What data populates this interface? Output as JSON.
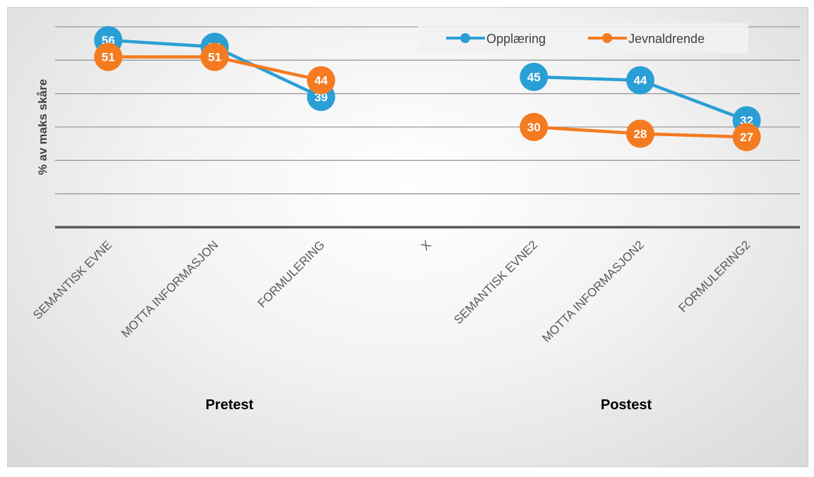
{
  "chart_data": {
    "type": "line",
    "title": "",
    "ylabel": "% av maks skåre",
    "xlabel": "",
    "ylim": [
      0,
      60
    ],
    "grid": true,
    "legend_position": "top-right",
    "categories": [
      "SEMANTISK EVNE",
      "MOTTA INFORMASJON",
      "FORMULERING",
      "X",
      "SEMANTISK EVNE2",
      "MOTTA INFORMASJON2",
      "FORMULERING2"
    ],
    "group_labels": [
      "Pretest",
      "Postest"
    ],
    "series": [
      {
        "name": "Opplæring",
        "color": "#2a9fd6",
        "values": [
          56,
          54,
          39,
          null,
          45,
          44,
          32
        ]
      },
      {
        "name": "Jevnaldrende",
        "color": "#f47b20",
        "values": [
          51,
          51,
          44,
          null,
          30,
          28,
          27
        ]
      }
    ]
  }
}
